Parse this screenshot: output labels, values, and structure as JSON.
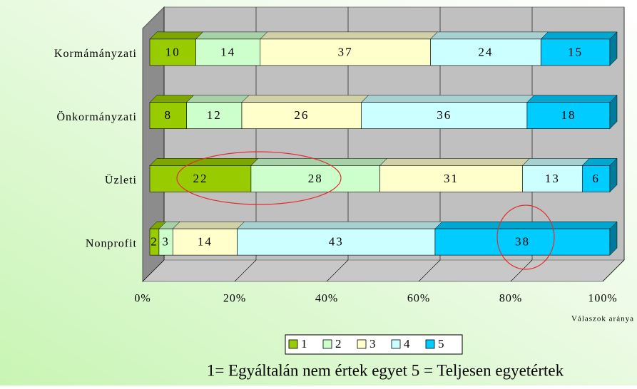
{
  "chart_data": {
    "type": "stacked_bar_3d",
    "categories": [
      "Kormámányzati",
      "Önkormányzati",
      "Üzleti",
      "Nonprofit"
    ],
    "series": [
      {
        "name": "1",
        "color": "#99cc00",
        "values": [
          10,
          8,
          22,
          2
        ]
      },
      {
        "name": "2",
        "color": "#ccffcc",
        "values": [
          14,
          12,
          28,
          3
        ]
      },
      {
        "name": "3",
        "color": "#ffffcc",
        "values": [
          37,
          26,
          31,
          14
        ]
      },
      {
        "name": "4",
        "color": "#ccffff",
        "values": [
          24,
          36,
          13,
          43
        ]
      },
      {
        "name": "5",
        "color": "#00ccff",
        "values": [
          15,
          18,
          6,
          38
        ]
      }
    ],
    "xlim": [
      0,
      100
    ],
    "xticks": [
      {
        "value": 0,
        "label": "0%"
      },
      {
        "value": 20,
        "label": "20%"
      },
      {
        "value": 40,
        "label": "40%"
      },
      {
        "value": 60,
        "label": "60%"
      },
      {
        "value": 80,
        "label": "80%"
      },
      {
        "value": 100,
        "label": "100%"
      }
    ],
    "x_label": "Válaszok aránya",
    "note": "1= Egyáltalán nem értek egyet 5 = Teljesen egyetértek",
    "grid": true,
    "legend": "bottom"
  }
}
